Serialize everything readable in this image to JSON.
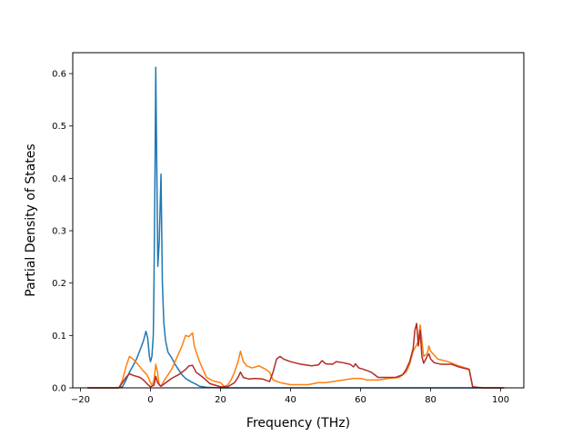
{
  "chart_data": {
    "type": "line",
    "xlabel": "Frequency (THz)",
    "ylabel": "Partial Density of States",
    "xlim": [
      -22.2,
      106.6
    ],
    "ylim": [
      0,
      0.64
    ],
    "xticks": [
      -20,
      0,
      20,
      40,
      60,
      80,
      100
    ],
    "yticks": [
      0.0,
      0.1,
      0.2,
      0.3,
      0.4,
      0.5,
      0.6
    ],
    "xtick_labels": [
      "−20",
      "0",
      "20",
      "40",
      "60",
      "80",
      "100"
    ],
    "ytick_labels": [
      "0.0",
      "0.1",
      "0.2",
      "0.3",
      "0.4",
      "0.5",
      "0.6"
    ],
    "grid": false,
    "legend": "none",
    "series": [
      {
        "color": "#1f77b4",
        "points": [
          [
            -18,
            0
          ],
          [
            -10,
            0
          ],
          [
            -8,
            0.002
          ],
          [
            -7,
            0.015
          ],
          [
            -6,
            0.03
          ],
          [
            -5,
            0.042
          ],
          [
            -4,
            0.055
          ],
          [
            -3,
            0.072
          ],
          [
            -2,
            0.09
          ],
          [
            -1.3,
            0.108
          ],
          [
            -0.8,
            0.095
          ],
          [
            -0.3,
            0.06
          ],
          [
            0,
            0.05
          ],
          [
            0.4,
            0.06
          ],
          [
            0.8,
            0.1
          ],
          [
            1,
            0.2
          ],
          [
            1.3,
            0.42
          ],
          [
            1.5,
            0.612
          ],
          [
            1.8,
            0.42
          ],
          [
            2.1,
            0.232
          ],
          [
            2.5,
            0.28
          ],
          [
            3,
            0.408
          ],
          [
            3.4,
            0.2
          ],
          [
            3.8,
            0.125
          ],
          [
            4.3,
            0.09
          ],
          [
            5,
            0.068
          ],
          [
            6,
            0.058
          ],
          [
            7,
            0.045
          ],
          [
            8,
            0.035
          ],
          [
            9,
            0.025
          ],
          [
            10,
            0.018
          ],
          [
            11,
            0.014
          ],
          [
            12,
            0.01
          ],
          [
            13,
            0.007
          ],
          [
            14,
            0.003
          ],
          [
            16,
            0.001
          ],
          [
            20,
            0
          ],
          [
            40,
            0
          ],
          [
            60,
            0
          ],
          [
            80,
            0
          ],
          [
            100,
            0
          ]
        ]
      },
      {
        "color": "#ff7f0e",
        "points": [
          [
            -18,
            0
          ],
          [
            -9,
            0
          ],
          [
            -8,
            0.015
          ],
          [
            -7,
            0.04
          ],
          [
            -6,
            0.06
          ],
          [
            -5,
            0.055
          ],
          [
            -4,
            0.048
          ],
          [
            -3,
            0.04
          ],
          [
            -2,
            0.032
          ],
          [
            -1,
            0.025
          ],
          [
            -0.5,
            0.018
          ],
          [
            0,
            0.01
          ],
          [
            0.5,
            0.005
          ],
          [
            1,
            0.015
          ],
          [
            1.5,
            0.045
          ],
          [
            2,
            0.03
          ],
          [
            2.5,
            0.005
          ],
          [
            3,
            0.003
          ],
          [
            4,
            0.015
          ],
          [
            5,
            0.025
          ],
          [
            6,
            0.035
          ],
          [
            7,
            0.05
          ],
          [
            8,
            0.065
          ],
          [
            9,
            0.08
          ],
          [
            10,
            0.1
          ],
          [
            11,
            0.098
          ],
          [
            12,
            0.105
          ],
          [
            12.5,
            0.08
          ],
          [
            13,
            0.07
          ],
          [
            14,
            0.05
          ],
          [
            15,
            0.035
          ],
          [
            16,
            0.02
          ],
          [
            18,
            0.013
          ],
          [
            20,
            0.01
          ],
          [
            21,
            0.003
          ],
          [
            22,
            0.005
          ],
          [
            23,
            0.015
          ],
          [
            24,
            0.03
          ],
          [
            25,
            0.05
          ],
          [
            25.7,
            0.07
          ],
          [
            26.5,
            0.05
          ],
          [
            27.5,
            0.042
          ],
          [
            29,
            0.038
          ],
          [
            31,
            0.042
          ],
          [
            33,
            0.035
          ],
          [
            34,
            0.03
          ],
          [
            35,
            0.015
          ],
          [
            37,
            0.01
          ],
          [
            40,
            0.006
          ],
          [
            45,
            0.006
          ],
          [
            48,
            0.01
          ],
          [
            50,
            0.01
          ],
          [
            52,
            0.012
          ],
          [
            55,
            0.015
          ],
          [
            58,
            0.018
          ],
          [
            60,
            0.018
          ],
          [
            62,
            0.015
          ],
          [
            65,
            0.015
          ],
          [
            68,
            0.018
          ],
          [
            71,
            0.02
          ],
          [
            73,
            0.03
          ],
          [
            74,
            0.045
          ],
          [
            75,
            0.07
          ],
          [
            76,
            0.082
          ],
          [
            76.5,
            0.09
          ],
          [
            77,
            0.12
          ],
          [
            77.5,
            0.09
          ],
          [
            78,
            0.06
          ],
          [
            79,
            0.065
          ],
          [
            79.5,
            0.08
          ],
          [
            80,
            0.07
          ],
          [
            82,
            0.055
          ],
          [
            85,
            0.05
          ],
          [
            88,
            0.042
          ],
          [
            91,
            0.036
          ],
          [
            92,
            0.001
          ],
          [
            95,
            0
          ],
          [
            101,
            0
          ]
        ]
      },
      {
        "color": "#b22a28",
        "points": [
          [
            -18,
            0
          ],
          [
            -9,
            0
          ],
          [
            -8,
            0.01
          ],
          [
            -7,
            0.02
          ],
          [
            -6,
            0.027
          ],
          [
            -5,
            0.024
          ],
          [
            -3,
            0.02
          ],
          [
            -2,
            0.015
          ],
          [
            -1,
            0.008
          ],
          [
            0,
            0.002
          ],
          [
            1,
            0.005
          ],
          [
            1.5,
            0.022
          ],
          [
            2,
            0.01
          ],
          [
            3,
            0.003
          ],
          [
            4,
            0.008
          ],
          [
            6,
            0.018
          ],
          [
            8,
            0.025
          ],
          [
            10,
            0.035
          ],
          [
            11,
            0.042
          ],
          [
            12,
            0.043
          ],
          [
            13,
            0.03
          ],
          [
            15,
            0.02
          ],
          [
            17,
            0.008
          ],
          [
            20,
            0.002
          ],
          [
            22,
            0.002
          ],
          [
            24,
            0.01
          ],
          [
            25,
            0.02
          ],
          [
            25.7,
            0.03
          ],
          [
            26.5,
            0.02
          ],
          [
            28,
            0.017
          ],
          [
            30,
            0.018
          ],
          [
            32,
            0.017
          ],
          [
            34,
            0.012
          ],
          [
            35,
            0.03
          ],
          [
            36,
            0.055
          ],
          [
            37,
            0.06
          ],
          [
            38,
            0.055
          ],
          [
            40,
            0.05
          ],
          [
            43,
            0.045
          ],
          [
            46,
            0.042
          ],
          [
            48,
            0.044
          ],
          [
            49,
            0.052
          ],
          [
            50,
            0.046
          ],
          [
            52,
            0.045
          ],
          [
            53,
            0.05
          ],
          [
            55,
            0.048
          ],
          [
            57,
            0.045
          ],
          [
            58,
            0.04
          ],
          [
            58.5,
            0.046
          ],
          [
            59.5,
            0.038
          ],
          [
            61,
            0.035
          ],
          [
            63,
            0.03
          ],
          [
            64,
            0.025
          ],
          [
            65,
            0.02
          ],
          [
            67,
            0.02
          ],
          [
            70,
            0.02
          ],
          [
            72,
            0.025
          ],
          [
            73,
            0.035
          ],
          [
            74,
            0.05
          ],
          [
            75,
            0.075
          ],
          [
            75.5,
            0.11
          ],
          [
            76,
            0.123
          ],
          [
            76.5,
            0.08
          ],
          [
            77,
            0.11
          ],
          [
            77.5,
            0.06
          ],
          [
            78,
            0.047
          ],
          [
            79,
            0.06
          ],
          [
            79.5,
            0.065
          ],
          [
            80,
            0.055
          ],
          [
            81,
            0.048
          ],
          [
            83,
            0.045
          ],
          [
            86,
            0.045
          ],
          [
            88,
            0.04
          ],
          [
            91,
            0.035
          ],
          [
            92,
            0.002
          ],
          [
            95,
            0
          ],
          [
            101,
            0
          ]
        ]
      }
    ]
  }
}
